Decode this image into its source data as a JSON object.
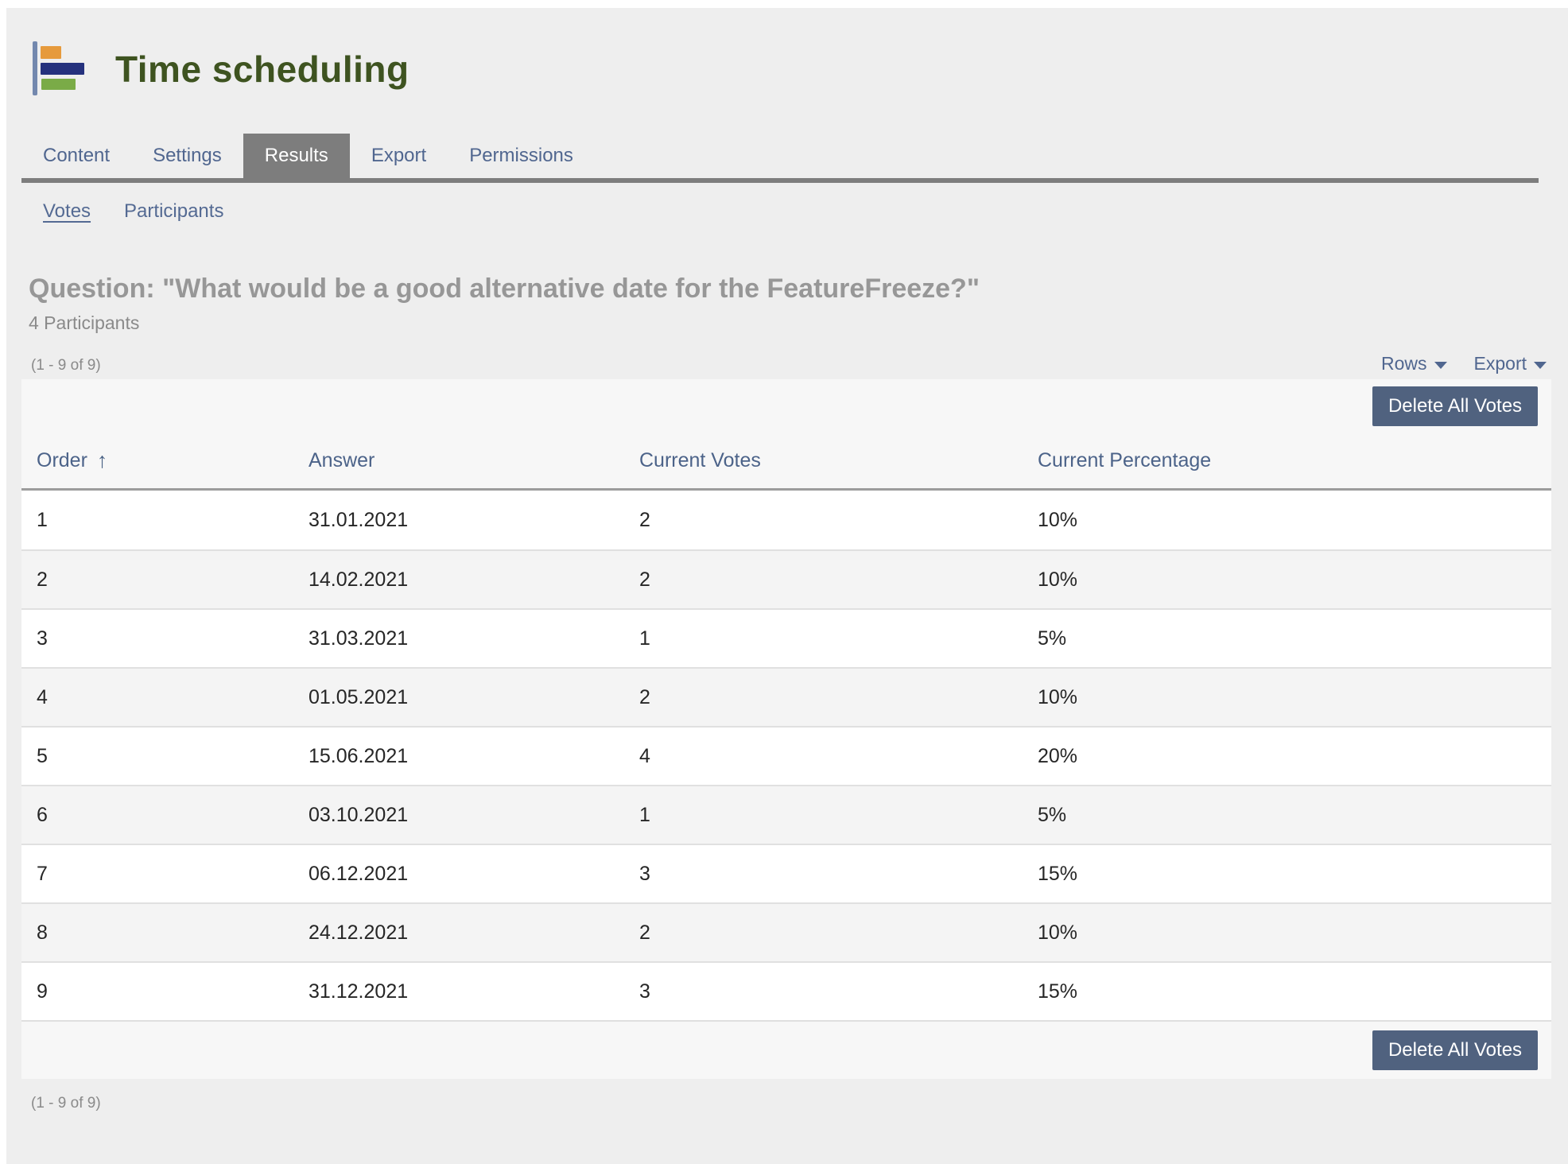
{
  "app": {
    "title": "Time scheduling"
  },
  "logo": {
    "icon": "bar-chart-logo",
    "axis_color": "#7388ae",
    "bar_colors": [
      "#e69a3c",
      "#25317d",
      "#7aab47"
    ]
  },
  "tabs": [
    {
      "label": "Content",
      "active": false
    },
    {
      "label": "Settings",
      "active": false
    },
    {
      "label": "Results",
      "active": true
    },
    {
      "label": "Export",
      "active": false
    },
    {
      "label": "Permissions",
      "active": false
    }
  ],
  "subnav": [
    {
      "label": "Votes",
      "active": true
    },
    {
      "label": "Participants",
      "active": false
    }
  ],
  "question": {
    "heading": "Question: \"What would be a good alternative date for the FeatureFreeze?\"",
    "participants": "4 Participants"
  },
  "pagination": {
    "top": "(1 - 9 of 9)",
    "bottom": "(1 - 9 of 9)"
  },
  "controls": {
    "rows_label": "Rows",
    "export_label": "Export"
  },
  "table": {
    "delete_button_label": "Delete All Votes",
    "columns": [
      {
        "label": "Order",
        "sorted": "asc"
      },
      {
        "label": "Answer"
      },
      {
        "label": "Current Votes"
      },
      {
        "label": "Current Percentage"
      }
    ],
    "rows": [
      {
        "order": "1",
        "answer": "31.01.2021",
        "votes": "2",
        "percentage": "10%"
      },
      {
        "order": "2",
        "answer": "14.02.2021",
        "votes": "2",
        "percentage": "10%"
      },
      {
        "order": "3",
        "answer": "31.03.2021",
        "votes": "1",
        "percentage": "5%"
      },
      {
        "order": "4",
        "answer": "01.05.2021",
        "votes": "2",
        "percentage": "10%"
      },
      {
        "order": "5",
        "answer": "15.06.2021",
        "votes": "4",
        "percentage": "20%"
      },
      {
        "order": "6",
        "answer": "03.10.2021",
        "votes": "1",
        "percentage": "5%"
      },
      {
        "order": "7",
        "answer": "06.12.2021",
        "votes": "3",
        "percentage": "15%"
      },
      {
        "order": "8",
        "answer": "24.12.2021",
        "votes": "2",
        "percentage": "10%"
      },
      {
        "order": "9",
        "answer": "31.12.2021",
        "votes": "3",
        "percentage": "15%"
      }
    ]
  },
  "colors": {
    "page_background": "#eeeeee",
    "title_green": "#3e5320",
    "tab_blue": "#50668f",
    "active_tab_gray": "#7d7d7d",
    "button_slate": "#50627f",
    "table_background": "#f7f7f7",
    "question_gray": "#979797"
  }
}
